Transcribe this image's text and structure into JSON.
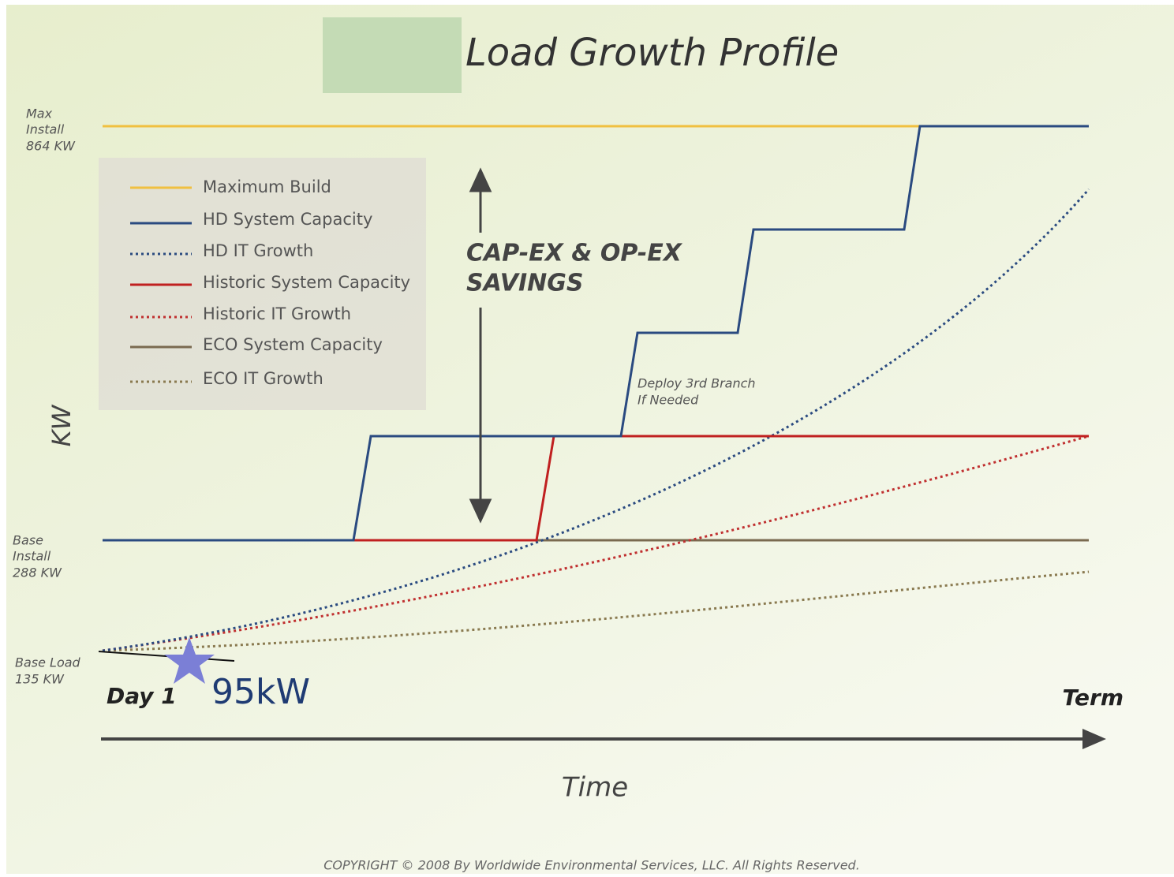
{
  "header": {
    "title": "Load Growth Profile"
  },
  "y_axis": {
    "label": "KW",
    "levels": [
      {
        "lines": [
          "Max",
          "Install",
          "864 KW"
        ]
      },
      {
        "lines": [
          "Base",
          "Install",
          "288 KW"
        ]
      },
      {
        "lines": [
          "Base Load",
          "135 KW"
        ]
      }
    ]
  },
  "legend": {
    "items": [
      "Maximum Build",
      "HD System Capacity",
      "HD IT Growth",
      "Historic System Capacity",
      "Historic IT Growth",
      "ECO System Capacity",
      "ECO IT Growth"
    ]
  },
  "annotations": {
    "savings": [
      "CAP-EX & OP-EX",
      "SAVINGS"
    ],
    "branch": [
      "Deploy 3rd Branch",
      "If Needed"
    ],
    "marker": "95kW"
  },
  "x_axis": {
    "start": "Day 1",
    "end": "Term",
    "label": "Time"
  },
  "footer": {
    "copyright": "COPYRIGHT © 2008 By Worldwide Environmental Services, LLC. All Rights Reserved."
  }
}
